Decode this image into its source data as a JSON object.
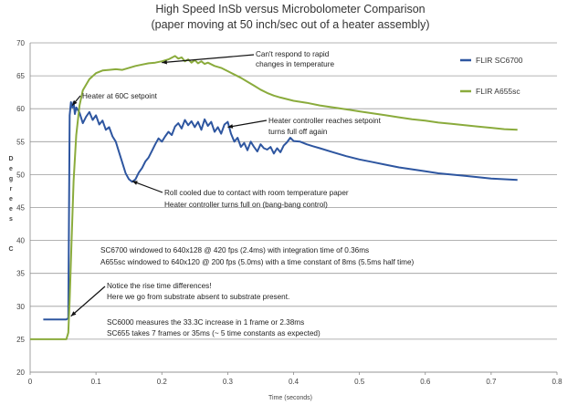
{
  "chart_data": {
    "type": "line",
    "title": "High Speed InSb versus Microbolometer Comparison",
    "subtitle": "(paper moving at 50 inch/sec out of a heater assembly)",
    "xlabel": "Time (seconds)",
    "ylabel": "Degrees C",
    "xlim": [
      0,
      0.8
    ],
    "ylim": [
      20,
      70
    ],
    "x_ticks": [
      "0",
      "0.1",
      "0.2",
      "0.3",
      "0.4",
      "0.5",
      "0.6",
      "0.7",
      "0.8"
    ],
    "y_ticks": [
      "20",
      "25",
      "30",
      "35",
      "40",
      "45",
      "50",
      "55",
      "60",
      "65",
      "70"
    ],
    "grid": "horizontal",
    "legend_position": "right",
    "series": [
      {
        "name": "FLIR SC6700",
        "color": "#2e56a0",
        "points": [
          [
            0.02,
            28.0
          ],
          [
            0.055,
            28.0
          ],
          [
            0.058,
            28.2
          ],
          [
            0.06,
            59.0
          ],
          [
            0.062,
            61.0
          ],
          [
            0.064,
            60.2
          ],
          [
            0.066,
            61.0
          ],
          [
            0.068,
            59.2
          ],
          [
            0.07,
            60.2
          ],
          [
            0.075,
            59.4
          ],
          [
            0.08,
            57.8
          ],
          [
            0.085,
            58.8
          ],
          [
            0.09,
            59.5
          ],
          [
            0.095,
            58.3
          ],
          [
            0.1,
            59.0
          ],
          [
            0.105,
            57.6
          ],
          [
            0.11,
            58.2
          ],
          [
            0.115,
            56.8
          ],
          [
            0.12,
            57.2
          ],
          [
            0.125,
            55.8
          ],
          [
            0.13,
            55.0
          ],
          [
            0.135,
            53.4
          ],
          [
            0.14,
            51.8
          ],
          [
            0.145,
            50.2
          ],
          [
            0.15,
            49.3
          ],
          [
            0.155,
            48.9
          ],
          [
            0.16,
            49.3
          ],
          [
            0.165,
            50.3
          ],
          [
            0.17,
            51.0
          ],
          [
            0.175,
            52.0
          ],
          [
            0.18,
            52.6
          ],
          [
            0.185,
            53.6
          ],
          [
            0.19,
            54.6
          ],
          [
            0.195,
            55.5
          ],
          [
            0.2,
            55.0
          ],
          [
            0.205,
            55.8
          ],
          [
            0.21,
            56.5
          ],
          [
            0.215,
            56.0
          ],
          [
            0.22,
            57.3
          ],
          [
            0.225,
            57.8
          ],
          [
            0.23,
            57.0
          ],
          [
            0.235,
            58.3
          ],
          [
            0.24,
            57.5
          ],
          [
            0.245,
            58.1
          ],
          [
            0.25,
            57.2
          ],
          [
            0.255,
            58.0
          ],
          [
            0.26,
            56.8
          ],
          [
            0.265,
            58.4
          ],
          [
            0.27,
            57.4
          ],
          [
            0.275,
            58.0
          ],
          [
            0.28,
            56.5
          ],
          [
            0.285,
            57.2
          ],
          [
            0.29,
            56.2
          ],
          [
            0.295,
            57.6
          ],
          [
            0.3,
            58.0
          ],
          [
            0.305,
            56.2
          ],
          [
            0.31,
            55.0
          ],
          [
            0.315,
            55.6
          ],
          [
            0.32,
            54.2
          ],
          [
            0.325,
            54.8
          ],
          [
            0.33,
            53.7
          ],
          [
            0.335,
            55.0
          ],
          [
            0.34,
            54.2
          ],
          [
            0.345,
            53.5
          ],
          [
            0.35,
            54.6
          ],
          [
            0.355,
            54.0
          ],
          [
            0.36,
            53.8
          ],
          [
            0.365,
            54.2
          ],
          [
            0.37,
            53.2
          ],
          [
            0.375,
            54.0
          ],
          [
            0.38,
            53.4
          ],
          [
            0.385,
            54.4
          ],
          [
            0.39,
            54.9
          ],
          [
            0.395,
            55.6
          ],
          [
            0.4,
            55.1
          ],
          [
            0.41,
            55.0
          ],
          [
            0.42,
            54.6
          ],
          [
            0.43,
            54.3
          ],
          [
            0.44,
            54.0
          ],
          [
            0.46,
            53.4
          ],
          [
            0.48,
            52.8
          ],
          [
            0.5,
            52.3
          ],
          [
            0.52,
            51.9
          ],
          [
            0.54,
            51.5
          ],
          [
            0.56,
            51.1
          ],
          [
            0.58,
            50.8
          ],
          [
            0.6,
            50.5
          ],
          [
            0.62,
            50.2
          ],
          [
            0.64,
            50.0
          ],
          [
            0.66,
            49.8
          ],
          [
            0.68,
            49.6
          ],
          [
            0.7,
            49.4
          ],
          [
            0.72,
            49.3
          ],
          [
            0.74,
            49.2
          ]
        ]
      },
      {
        "name": "FLIR A655sc",
        "color": "#8aab3c",
        "points": [
          [
            0.0,
            25.0
          ],
          [
            0.055,
            25.0
          ],
          [
            0.058,
            26.0
          ],
          [
            0.06,
            31.0
          ],
          [
            0.063,
            40.0
          ],
          [
            0.066,
            49.0
          ],
          [
            0.07,
            56.0
          ],
          [
            0.075,
            60.5
          ],
          [
            0.08,
            62.8
          ],
          [
            0.09,
            64.5
          ],
          [
            0.1,
            65.4
          ],
          [
            0.11,
            65.8
          ],
          [
            0.12,
            65.9
          ],
          [
            0.13,
            66.0
          ],
          [
            0.14,
            65.9
          ],
          [
            0.15,
            66.2
          ],
          [
            0.16,
            66.5
          ],
          [
            0.17,
            66.7
          ],
          [
            0.18,
            66.9
          ],
          [
            0.19,
            67.0
          ],
          [
            0.2,
            67.2
          ],
          [
            0.21,
            67.5
          ],
          [
            0.22,
            68.0
          ],
          [
            0.225,
            67.6
          ],
          [
            0.23,
            67.8
          ],
          [
            0.235,
            67.2
          ],
          [
            0.24,
            67.5
          ],
          [
            0.245,
            67.0
          ],
          [
            0.25,
            67.4
          ],
          [
            0.255,
            66.9
          ],
          [
            0.26,
            67.2
          ],
          [
            0.265,
            66.8
          ],
          [
            0.27,
            67.0
          ],
          [
            0.28,
            66.5
          ],
          [
            0.29,
            66.2
          ],
          [
            0.3,
            65.7
          ],
          [
            0.31,
            65.2
          ],
          [
            0.32,
            64.7
          ],
          [
            0.33,
            64.1
          ],
          [
            0.34,
            63.5
          ],
          [
            0.35,
            62.9
          ],
          [
            0.36,
            62.4
          ],
          [
            0.37,
            62.0
          ],
          [
            0.38,
            61.7
          ],
          [
            0.4,
            61.2
          ],
          [
            0.42,
            60.9
          ],
          [
            0.44,
            60.5
          ],
          [
            0.46,
            60.2
          ],
          [
            0.48,
            59.9
          ],
          [
            0.5,
            59.6
          ],
          [
            0.52,
            59.3
          ],
          [
            0.54,
            59.0
          ],
          [
            0.56,
            58.7
          ],
          [
            0.58,
            58.4
          ],
          [
            0.6,
            58.2
          ],
          [
            0.62,
            57.9
          ],
          [
            0.64,
            57.7
          ],
          [
            0.66,
            57.5
          ],
          [
            0.68,
            57.3
          ],
          [
            0.7,
            57.1
          ],
          [
            0.72,
            56.9
          ],
          [
            0.74,
            56.8
          ]
        ]
      }
    ],
    "annotations": [
      {
        "id": "cant-respond",
        "lines": [
          "Can't respond to rapid",
          "changes in temperature"
        ],
        "arrow_to": [
          0.2,
          67.0
        ]
      },
      {
        "id": "heater-setpoint",
        "lines": [
          "Heater at 60C setpoint"
        ],
        "arrow_to": [
          0.064,
          60.5
        ]
      },
      {
        "id": "controller-reaches",
        "lines": [
          "Heater controller reaches setpoint",
          "turns full off again"
        ],
        "arrow_to": [
          0.3,
          57.2
        ]
      },
      {
        "id": "roll-cooled",
        "lines": [
          "Roll cooled due to contact with room temperature  paper",
          "Heater controller turns full on (bang-bang control)"
        ],
        "arrow_to": [
          0.155,
          49.0
        ]
      },
      {
        "id": "windowing",
        "lines": [
          "SC6700 windowed to 640x128 @ 420 fps (2.4ms) with integration time of 0.36ms",
          "A655sc windowed to 640x120 @ 200 fps (5.0ms) with a time constant of 8ms (5.5ms half time)"
        ]
      },
      {
        "id": "rise-time",
        "lines": [
          "Notice the rise time differences!",
          "Here we go from substrate absent to substrate present."
        ],
        "arrow_to": [
          0.062,
          28.5
        ]
      },
      {
        "id": "rise-stats",
        "lines": [
          "SC6000 measures the 33.3C increase in 1 frame or 2.38ms",
          "SC655 takes 7 frames or 35ms (~ 5 time constants as expected)"
        ]
      }
    ]
  }
}
